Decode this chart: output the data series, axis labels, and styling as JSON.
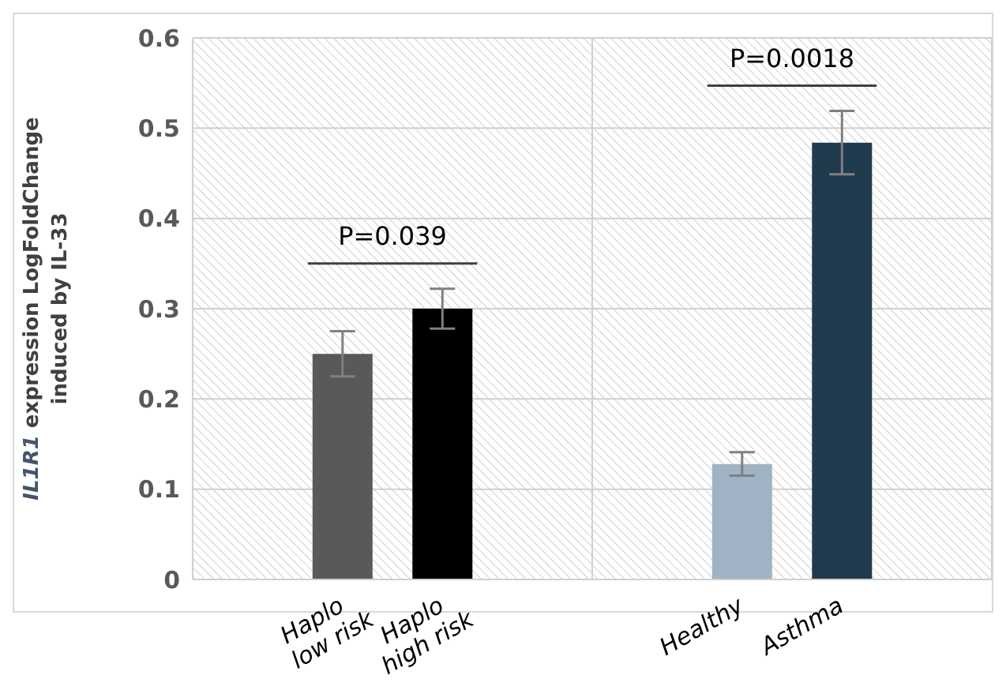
{
  "chart_data": {
    "type": "bar",
    "ylabel": "IL1R1 expression LogFoldChange induced by IL-33",
    "categories": [
      null,
      "Haplo low risk",
      "Haplo high risk",
      null,
      null,
      "Healthy",
      "Asthma",
      null
    ],
    "values": [
      null,
      0.25,
      0.3,
      null,
      null,
      0.128,
      0.484,
      null
    ],
    "colors": [
      "#595959",
      "#595959",
      "#000000",
      "#595959",
      "#595959",
      "#9fb3c4",
      "#203a4e",
      "#595959"
    ],
    "errors": [
      null,
      0.025,
      0.022,
      null,
      null,
      0.013,
      0.035,
      null
    ],
    "annotations": [
      "P=0.039",
      "P=0.0018"
    ],
    "ylim": [
      0,
      0.6
    ],
    "yticks": [
      0,
      0.1,
      0.2,
      0.3,
      0.4,
      0.5,
      0.6
    ],
    "grid": true,
    "legend": false
  }
}
